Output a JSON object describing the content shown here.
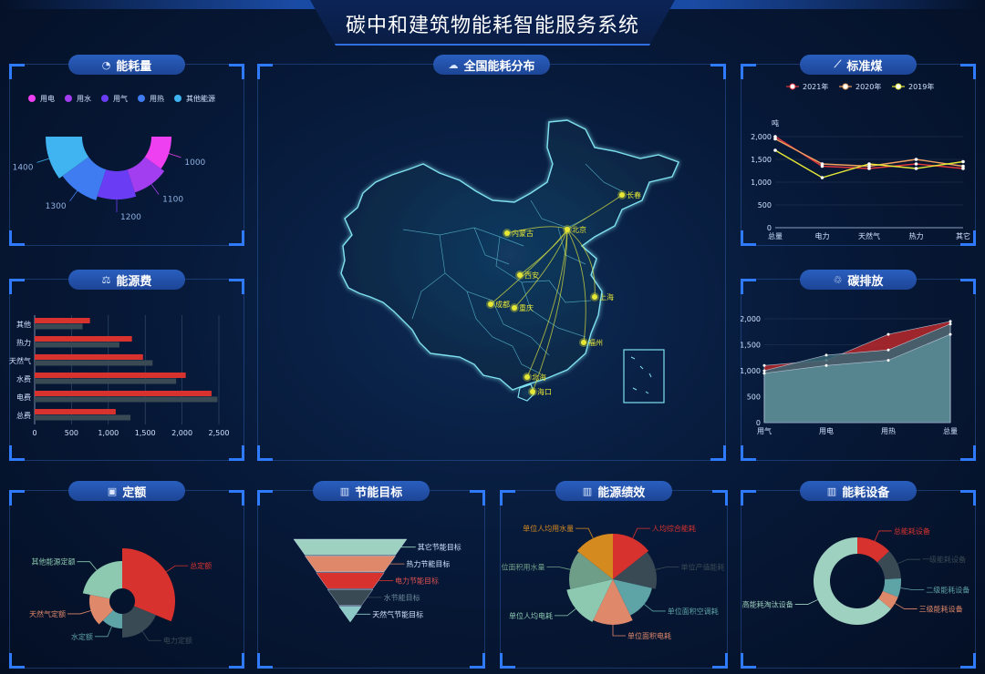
{
  "header": {
    "title": "碳中和建筑物能耗智能服务系统"
  },
  "panels": {
    "energy_consumption": {
      "title": "能耗量",
      "icon": "pie-icon"
    },
    "energy_cost": {
      "title": "能源费",
      "icon": "cost-icon"
    },
    "national_map": {
      "title": "全国能耗分布",
      "icon": "map-icon"
    },
    "standard_coal": {
      "title": "标准煤",
      "icon": "trend-icon"
    },
    "carbon_emission": {
      "title": "碳排放",
      "icon": "co2-icon"
    },
    "quota": {
      "title": "定额",
      "icon": "train-icon"
    },
    "saving_target": {
      "title": "节能目标",
      "icon": "chart-icon"
    },
    "performance": {
      "title": "能源绩效",
      "icon": "chart-icon"
    },
    "equipment": {
      "title": "能耗设备",
      "icon": "chart-icon"
    }
  },
  "colors": {
    "accent": "#2e7bff",
    "panel_title": "#2a5fbf",
    "red": "#e0373c",
    "yellow": "#e6e835"
  },
  "chart_data": [
    {
      "id": "energy_consumption",
      "type": "pie",
      "legend": [
        "用电",
        "用水",
        "用气",
        "用热",
        "其他能源"
      ],
      "values": [
        1000,
        1100,
        1200,
        1300,
        1400
      ],
      "colors": [
        "#ee3ff0",
        "#a33df0",
        "#6a3df5",
        "#3f7cf2",
        "#3fb4f0"
      ]
    },
    {
      "id": "energy_cost",
      "type": "bar",
      "categories": [
        "其他",
        "热力",
        "天然气",
        "水费",
        "电费",
        "总费"
      ],
      "series": [
        {
          "values": [
            750,
            1320,
            1470,
            2050,
            2400,
            1100
          ],
          "color": "#d8322e"
        },
        {
          "values": [
            650,
            1150,
            1600,
            1920,
            2480,
            1300
          ],
          "color": "#3a4a55"
        }
      ],
      "xticks": [
        "0",
        "500",
        "1,000",
        "1,500",
        "2,000",
        "2,500"
      ],
      "xlim": [
        0,
        2500
      ]
    },
    {
      "id": "standard_coal",
      "type": "line",
      "ylabel": "吨",
      "categories": [
        "总量",
        "电力",
        "天然气",
        "热力",
        "其它"
      ],
      "yticks": [
        "0",
        "500",
        "1,000",
        "1,500",
        "2,000"
      ],
      "ylim": [
        0,
        2000
      ],
      "series": [
        {
          "name": "2021年",
          "values": [
            2000,
            1350,
            1300,
            1400,
            1300
          ],
          "color": "#e0373c"
        },
        {
          "name": "2020年",
          "values": [
            1950,
            1400,
            1350,
            1500,
            1350
          ],
          "color": "#f0a060"
        },
        {
          "name": "2019年",
          "values": [
            1700,
            1100,
            1400,
            1300,
            1450
          ],
          "color": "#e6e835"
        }
      ]
    },
    {
      "id": "carbon_emission",
      "type": "area",
      "categories": [
        "用气",
        "用电",
        "用热",
        "总量"
      ],
      "yticks": [
        "0",
        "500",
        "1,000",
        "1,500",
        "2,000"
      ],
      "ylim": [
        0,
        2000
      ],
      "series": [
        {
          "values": [
            1100,
            1200,
            1700,
            1950
          ],
          "color": "#b8282a"
        },
        {
          "values": [
            1000,
            1300,
            1400,
            1900
          ],
          "color": "#3a6775"
        },
        {
          "values": [
            950,
            1100,
            1200,
            1700
          ],
          "color": "#5a8c96"
        }
      ]
    },
    {
      "id": "quota",
      "type": "pie",
      "labels": [
        "总定额",
        "电力定额",
        "水定额",
        "天然气定额",
        "其他能源定额"
      ],
      "values": [
        5,
        3,
        2,
        2.5,
        3.5
      ],
      "colors": [
        "#d8322e",
        "#3a4a55",
        "#5ea3a6",
        "#e0886a",
        "#8cc9b0"
      ]
    },
    {
      "id": "saving_target",
      "type": "funnel",
      "labels": [
        "其它节能目标",
        "热力节能目标",
        "电力节能目标",
        "水节能目标",
        "天然气节能目标"
      ],
      "colors": [
        "#9ed1c0",
        "#e0886a",
        "#d8322e",
        "#3a4a55",
        "#8cc9c6"
      ]
    },
    {
      "id": "performance",
      "type": "pie",
      "labels": [
        "人均综合能耗",
        "单位产值能耗",
        "单位面积空调耗",
        "单位面积电耗",
        "单位人均电耗",
        "位面积用水量",
        "单位人均用水量"
      ],
      "values": [
        1,
        1,
        1,
        1,
        1,
        1,
        1
      ],
      "colors": [
        "#d8322e",
        "#3a4a55",
        "#5ea3a6",
        "#e0886a",
        "#8cc9b0",
        "#6f9e88",
        "#d58a20"
      ]
    },
    {
      "id": "equipment",
      "type": "pie",
      "labels": [
        "总能耗设备",
        "一级能耗设备",
        "二级能耗设备",
        "三级能耗设备",
        "高能耗淘汰设备"
      ],
      "values": [
        1.3,
        1.1,
        0.7,
        0.5,
        6.4
      ],
      "colors": [
        "#d8322e",
        "#3a4a55",
        "#5ea3a6",
        "#e0886a",
        "#9ed1c0"
      ]
    }
  ],
  "map": {
    "cities": [
      "长春",
      "内蒙古",
      "北京",
      "西安",
      "上海",
      "成都",
      "重庆",
      "福州",
      "北海",
      "海口"
    ]
  }
}
